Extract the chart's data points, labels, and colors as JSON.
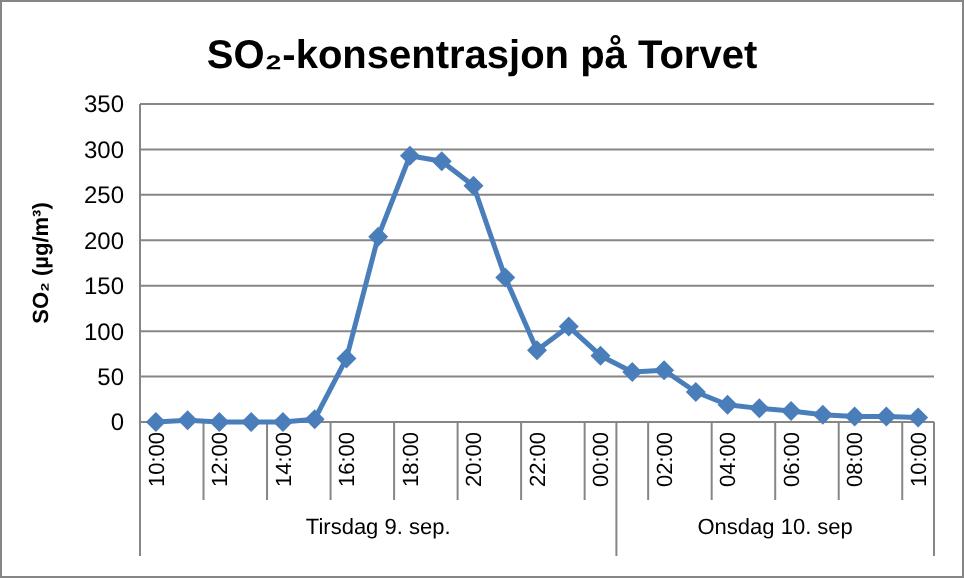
{
  "chart_data": {
    "type": "line",
    "title": "SO₂-konsentrasjon på Torvet",
    "ylabel": "SO₂ (µg/m³)",
    "categories": [
      "10:00",
      null,
      "12:00",
      null,
      "14:00",
      null,
      "16:00",
      null,
      "18:00",
      null,
      "20:00",
      null,
      "22:00",
      null,
      "00:00",
      null,
      "02:00",
      null,
      "04:00",
      null,
      "06:00",
      null,
      "08:00",
      null,
      "10:00"
    ],
    "series": [
      {
        "color": "#4a7ebb",
        "values": [
          0,
          2,
          0,
          0,
          0,
          3,
          70,
          204,
          293,
          287,
          260,
          159,
          79,
          105,
          73,
          55,
          57,
          33,
          19,
          15,
          12,
          8,
          6,
          6,
          5
        ]
      }
    ],
    "annotations": [
      "Tirsdag 9. sep.",
      "Onsdag 10. sep"
    ],
    "ylim": [
      0,
      350
    ],
    "yticks": [
      0,
      50,
      100,
      150,
      200,
      250,
      300,
      350
    ],
    "grid": "y",
    "marker": "diamond",
    "line_style": "solid"
  }
}
